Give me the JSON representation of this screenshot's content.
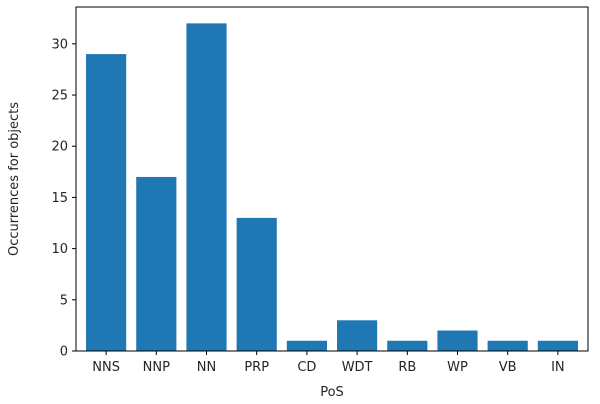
{
  "chart_data": {
    "type": "bar",
    "categories": [
      "NNS",
      "NNP",
      "NN",
      "PRP",
      "CD",
      "WDT",
      "RB",
      "WP",
      "VB",
      "IN"
    ],
    "values": [
      29,
      17,
      32,
      13,
      1,
      3,
      1,
      2,
      1,
      1
    ],
    "title": "",
    "xlabel": "PoS",
    "ylabel": "Occurrences for objects",
    "ylim": [
      0,
      33.6
    ],
    "yticks": [
      0,
      5,
      10,
      15,
      20,
      25,
      30
    ],
    "grid": false,
    "bar_color": "#1f77b4"
  }
}
